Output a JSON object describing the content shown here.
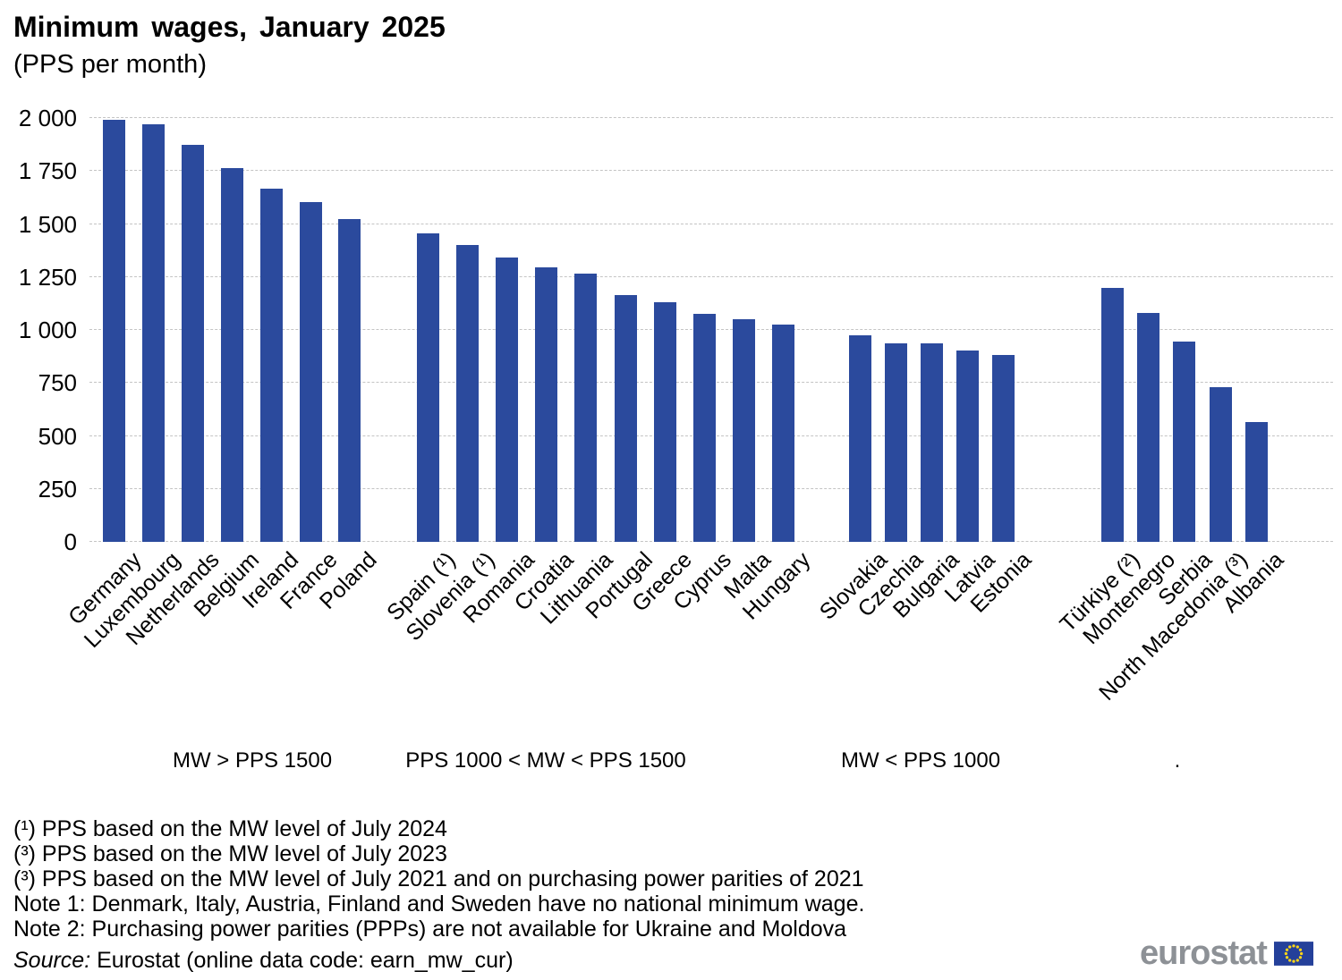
{
  "title": "Minimum wages, January 2025",
  "subtitle": "(PPS per month)",
  "chart_data": {
    "type": "bar",
    "title": "Minimum wages, January 2025",
    "unit": "PPS per month",
    "ylim": [
      0,
      2000
    ],
    "ytick_step": 250,
    "grid": true,
    "bar_color": "#2B4A9D",
    "yticks": [
      {
        "value": 2000,
        "label": "2 000"
      },
      {
        "value": 1750,
        "label": "1 750"
      },
      {
        "value": 1500,
        "label": "1 500"
      },
      {
        "value": 1250,
        "label": "1 250"
      },
      {
        "value": 1000,
        "label": "1 000"
      },
      {
        "value": 750,
        "label": "750"
      },
      {
        "value": 500,
        "label": "500"
      },
      {
        "value": 250,
        "label": "250"
      },
      {
        "value": 0,
        "label": "0"
      }
    ],
    "groups": [
      {
        "label": "MW > PPS 1500",
        "items": [
          {
            "name": "Germany",
            "value": 1990
          },
          {
            "name": "Luxembourg",
            "value": 1970
          },
          {
            "name": "Netherlands",
            "value": 1875
          },
          {
            "name": "Belgium",
            "value": 1765
          },
          {
            "name": "Ireland",
            "value": 1665
          },
          {
            "name": "France",
            "value": 1605
          },
          {
            "name": "Poland",
            "value": 1525
          }
        ]
      },
      {
        "label": "PPS 1000 < MW < PPS 1500",
        "items": [
          {
            "name": "Spain (¹)",
            "value": 1455
          },
          {
            "name": "Slovenia (¹)",
            "value": 1400
          },
          {
            "name": "Romania",
            "value": 1340
          },
          {
            "name": "Croatia",
            "value": 1295
          },
          {
            "name": "Lithuania",
            "value": 1265
          },
          {
            "name": "Portugal",
            "value": 1165
          },
          {
            "name": "Greece",
            "value": 1130
          },
          {
            "name": "Cyprus",
            "value": 1075
          },
          {
            "name": "Malta",
            "value": 1050
          },
          {
            "name": "Hungary",
            "value": 1025
          }
        ]
      },
      {
        "label": "MW < PPS 1000",
        "items": [
          {
            "name": "Slovakia",
            "value": 975
          },
          {
            "name": "Czechia",
            "value": 935
          },
          {
            "name": "Bulgaria",
            "value": 935
          },
          {
            "name": "Latvia",
            "value": 905
          },
          {
            "name": "Estonia",
            "value": 880
          }
        ]
      },
      {
        "label": ".",
        "items": [
          {
            "name": "Türkiye (²)",
            "value": 1200
          },
          {
            "name": "Montenegro",
            "value": 1080
          },
          {
            "name": "Serbia",
            "value": 945
          },
          {
            "name": "North Macedonia (³)",
            "value": 730
          },
          {
            "name": "Albania",
            "value": 565
          }
        ]
      }
    ]
  },
  "footnotes": [
    "(¹) PPS based on the MW level of July 2024",
    "(³) PPS based on the MW level of July 2023",
    "(³) PPS based on the MW level of July 2021 and on purchasing power parities of 2021",
    "Note 1: Denmark, Italy, Austria, Finland and Sweden have no national minimum wage.",
    "Note 2: Purchasing power parities (PPPs) are not available for Ukraine and Moldova"
  ],
  "source_label": "Source:",
  "source_text": " Eurostat (online data code: earn_mw_cur)",
  "logo": {
    "text": "eurostat"
  }
}
